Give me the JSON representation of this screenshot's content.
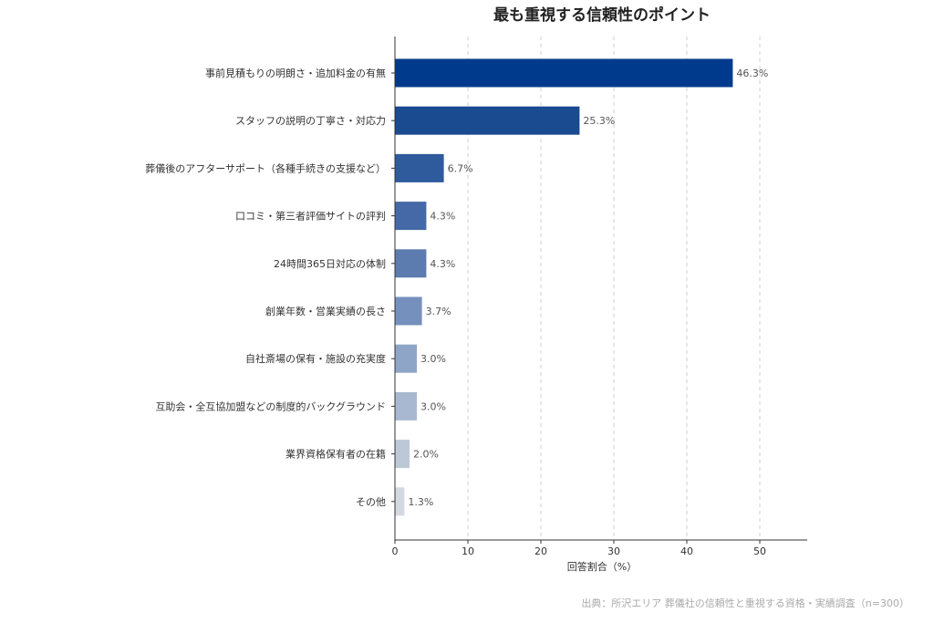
{
  "chart_data": {
    "type": "bar",
    "orientation": "horizontal",
    "title": "最も重視する信頼性のポイント",
    "xlabel": "回答割合（%）",
    "ylabel": "",
    "xlim": [
      0,
      56.5
    ],
    "xticks": [
      0,
      10,
      20,
      30,
      40,
      50
    ],
    "grid": "x-dashed",
    "categories": [
      "事前見積もりの明朗さ・追加料金の有無",
      "スタッフの説明の丁寧さ・対応力",
      "葬儀後のアフターサポート（各種手続きの支援など）",
      "口コミ・第三者評価サイトの評判",
      "24時間365日対応の体制",
      "創業年数・営業実績の長さ",
      "自社斎場の保有・施設の充実度",
      "互助会・全互協加盟などの制度的バックグラウンド",
      "業界資格保有者の在籍",
      "その他"
    ],
    "values": [
      46.3,
      25.3,
      6.7,
      4.3,
      4.3,
      3.7,
      3.0,
      3.0,
      2.0,
      1.3
    ],
    "value_labels": [
      "46.3%",
      "25.3%",
      "6.7%",
      "4.3%",
      "4.3%",
      "3.7%",
      "3.0%",
      "3.0%",
      "2.0%",
      "1.3%"
    ],
    "colors": [
      "#003a8c",
      "#1a4a8f",
      "#2f5b9c",
      "#4569a6",
      "#5c7cb0",
      "#7690bd",
      "#8fa5c8",
      "#a7b8d0",
      "#bcc8d6",
      "#d3d9de"
    ],
    "source": "出典：所沢エリア 葬儀社の信頼性と重視する資格・実績調査（n=300）"
  }
}
